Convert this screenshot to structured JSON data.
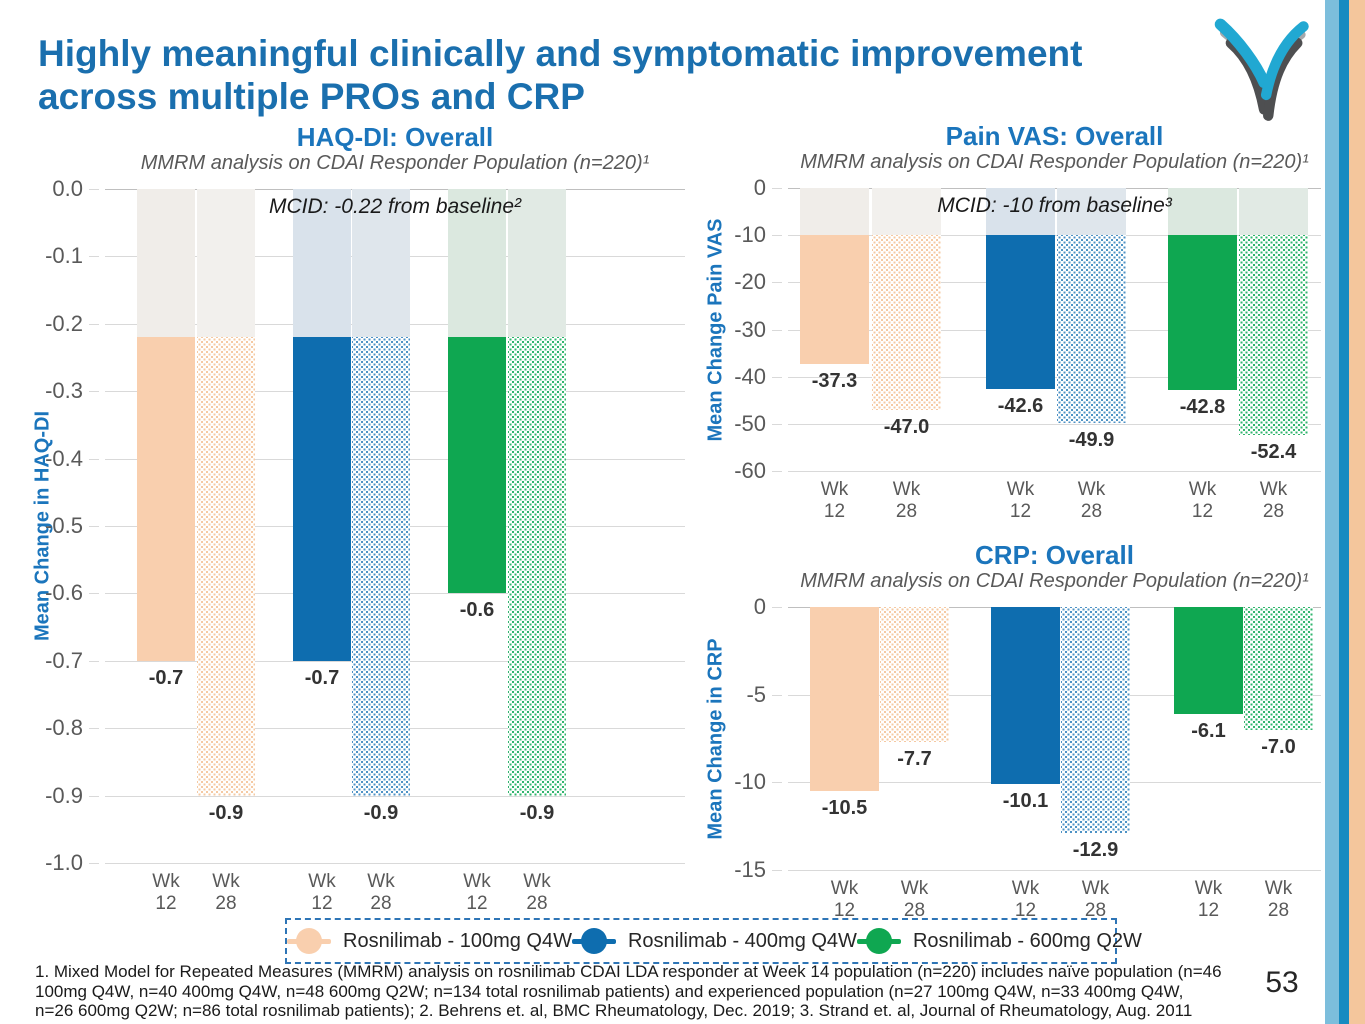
{
  "slide": {
    "title_line1": "Highly meaningful clinically and symptomatic improvement",
    "title_line2": "across multiple PROs and CRP",
    "page_number": "53"
  },
  "colors": {
    "slide_title": "#1A6FAE",
    "chart_title": "#1B75BC",
    "axis_label": "#1B75BC",
    "tick_label": "#595959",
    "gridline": "#D9D9D9",
    "data_label": "#333333",
    "legend_border": "#2E75B6",
    "stripe_light_blue": "#7CBEDC",
    "stripe_blue": "#168BC1",
    "stripe_peach": "#F4C69C",
    "logo_teal": "#21A8D2",
    "logo_gray": "#A6A8AB",
    "logo_charcoal": "#4E4F51"
  },
  "bar_styles": {
    "peach-solid": {
      "fill": "#F9CFAE"
    },
    "peach-hatch": {
      "dot": "#F5C9A2"
    },
    "blue-solid": {
      "fill": "#0E6DAF"
    },
    "blue-hatch": {
      "dot": "#4D92C5"
    },
    "green-solid": {
      "fill": "#0FA751"
    },
    "green-hatch": {
      "dot": "#2FB56C"
    },
    "faded": {
      "peach-solid": "#F0EDE9",
      "peach-hatch": "#F2F0ED",
      "blue-solid": "#D9E2EB",
      "blue-hatch": "#DFE6EC",
      "green-solid": "#DBE8DF",
      "green-hatch": "#E1EAE4"
    }
  },
  "legend": {
    "items": [
      {
        "label": "Rosnilimab - 100mg Q4W",
        "color": "#F9CFAE"
      },
      {
        "label": "Rosnilimab - 400mg Q4W",
        "color": "#0E6DAF"
      },
      {
        "label": "Rosnilimab - 600mg Q2W",
        "color": "#0FA751"
      }
    ]
  },
  "footnote": {
    "lines": [
      "1. Mixed Model for Repeated Measures (MMRM) analysis on rosnilimab CDAI LDA responder at Week 14 population (n=220) includes naïve population (n=46",
      "100mg Q4W, n=40 400mg Q4W, n=48 600mg Q2W; n=134 total rosnilimab patients) and experienced population (n=27 100mg Q4W, n=33 400mg Q4W,",
      "n=26 600mg Q2W; n=86 total rosnilimab patients); 2. Behrens et. al, BMC Rheumatology, Dec. 2019; 3. Strand et. al, Journal of Rheumatology, Aug. 2011"
    ]
  },
  "chart_data": [
    {
      "type": "bar",
      "id": "haqdi",
      "title": "HAQ-DI: Overall",
      "subtitle": "MMRM analysis on CDAI Responder Population (n=220)¹",
      "annotation": "MCID: -0.22 from baseline²",
      "ylabel": "Mean Change in HAQ-DI",
      "xlabel": "",
      "ylim": [
        -1.0,
        0.0
      ],
      "mcid": -0.22,
      "grid": true,
      "yticks": [
        "0.0",
        "-0.1",
        "-0.2",
        "-0.3",
        "-0.4",
        "-0.5",
        "-0.6",
        "-0.7",
        "-0.8",
        "-0.9",
        "-1.0"
      ],
      "categories": [
        "Wk 12",
        "Wk 28",
        "Wk 12",
        "Wk 28",
        "Wk 12",
        "Wk 28"
      ],
      "series_note": "pairs of bars grouped by arm: 100mg Q4W, 400mg Q4W, 600mg Q2W; Wk 28 bars hatched",
      "bars": [
        {
          "x": "Wk 12",
          "value": -0.7,
          "label": "-0.7",
          "style": "peach-solid"
        },
        {
          "x": "Wk 28",
          "value": -0.9,
          "label": "-0.9",
          "style": "peach-hatch"
        },
        {
          "x": "Wk 12",
          "value": -0.7,
          "label": "-0.7",
          "style": "blue-solid"
        },
        {
          "x": "Wk 28",
          "value": -0.9,
          "label": "-0.9",
          "style": "blue-hatch"
        },
        {
          "x": "Wk 12",
          "value": -0.6,
          "label": "-0.6",
          "style": "green-solid"
        },
        {
          "x": "Wk 28",
          "value": -0.9,
          "label": "-0.9",
          "style": "green-hatch"
        }
      ]
    },
    {
      "type": "bar",
      "id": "painvas",
      "title": "Pain VAS: Overall",
      "subtitle": "MMRM analysis on CDAI Responder Population (n=220)¹",
      "annotation": "MCID: -10 from baseline³",
      "ylabel": "Mean Change Pain VAS",
      "xlabel": "",
      "ylim": [
        -60,
        0
      ],
      "mcid": -10,
      "grid": true,
      "yticks": [
        "0",
        "-10",
        "-20",
        "-30",
        "-40",
        "-50",
        "-60"
      ],
      "categories": [
        "Wk 12",
        "Wk 28",
        "Wk 12",
        "Wk 28",
        "Wk 12",
        "Wk 28"
      ],
      "series_note": "pairs of bars grouped by arm: 100mg Q4W, 400mg Q4W, 600mg Q2W; Wk 28 bars hatched",
      "bars": [
        {
          "x": "Wk 12",
          "value": -37.3,
          "label": "-37.3",
          "style": "peach-solid"
        },
        {
          "x": "Wk 28",
          "value": -47.0,
          "label": "-47.0",
          "style": "peach-hatch"
        },
        {
          "x": "Wk 12",
          "value": -42.6,
          "label": "-42.6",
          "style": "blue-solid"
        },
        {
          "x": "Wk 28",
          "value": -49.9,
          "label": "-49.9",
          "style": "blue-hatch"
        },
        {
          "x": "Wk 12",
          "value": -42.8,
          "label": "-42.8",
          "style": "green-solid"
        },
        {
          "x": "Wk 28",
          "value": -52.4,
          "label": "-52.4",
          "style": "green-hatch"
        }
      ]
    },
    {
      "type": "bar",
      "id": "crp",
      "title": "CRP: Overall",
      "subtitle": "MMRM analysis on CDAI Responder Population (n=220)¹",
      "annotation": null,
      "ylabel": "Mean Change in CRP",
      "xlabel": "",
      "ylim": [
        -15,
        0
      ],
      "mcid": null,
      "grid": true,
      "yticks": [
        "0",
        "-5",
        "-10",
        "-15"
      ],
      "categories": [
        "Wk 12",
        "Wk 28",
        "Wk 12",
        "Wk 28",
        "Wk 12",
        "Wk 28"
      ],
      "series_note": "pairs of bars grouped by arm: 100mg Q4W, 400mg Q4W, 600mg Q2W; Wk 28 bars hatched",
      "bars": [
        {
          "x": "Wk 12",
          "value": -10.5,
          "label": "-10.5",
          "style": "peach-solid"
        },
        {
          "x": "Wk 28",
          "value": -7.7,
          "label": "-7.7",
          "style": "peach-hatch"
        },
        {
          "x": "Wk 12",
          "value": -10.1,
          "label": "-10.1",
          "style": "blue-solid"
        },
        {
          "x": "Wk 28",
          "value": -12.9,
          "label": "-12.9",
          "style": "blue-hatch"
        },
        {
          "x": "Wk 12",
          "value": -6.1,
          "label": "-6.1",
          "style": "green-solid"
        },
        {
          "x": "Wk 28",
          "value": -7.0,
          "label": "-7.0",
          "style": "green-hatch"
        }
      ]
    }
  ]
}
